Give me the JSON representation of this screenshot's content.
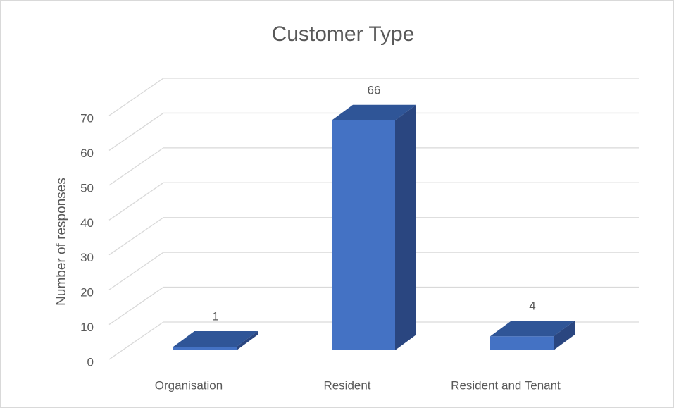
{
  "chart_data": {
    "type": "bar3d",
    "title": "Customer Type",
    "y_label": "Number of responses",
    "categories": [
      "Organisation",
      "Resident",
      "Resident and Tenant"
    ],
    "values": [
      1,
      66,
      4
    ],
    "color": "#4472c4",
    "ylim": [
      0,
      70
    ],
    "yticks": [
      0,
      10,
      20,
      30,
      40,
      50,
      60,
      70
    ],
    "grid": true
  }
}
